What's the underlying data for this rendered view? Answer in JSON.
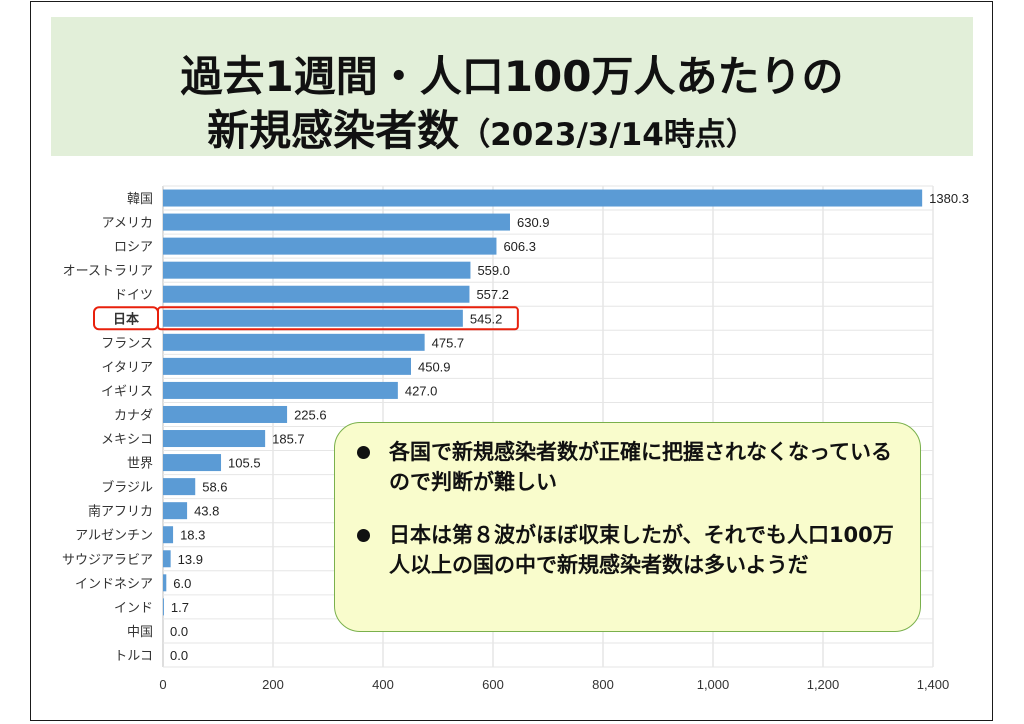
{
  "title": {
    "line1": "過去1週間・人口100万人あたりの",
    "line2_main": "新規感染者数",
    "line2_sub": "（2023/3/14時点）"
  },
  "chart_data": {
    "type": "bar",
    "orientation": "horizontal",
    "categories": [
      "韓国",
      "アメリカ",
      "ロシア",
      "オーストラリア",
      "ドイツ",
      "日本",
      "フランス",
      "イタリア",
      "イギリス",
      "カナダ",
      "メキシコ",
      "世界",
      "ブラジル",
      "南アフリカ",
      "アルゼンチン",
      "サウジアラビア",
      "インドネシア",
      "インド",
      "中国",
      "トルコ"
    ],
    "values": [
      1380.3,
      630.9,
      606.3,
      559.0,
      557.2,
      545.2,
      475.7,
      450.9,
      427.0,
      225.6,
      185.7,
      105.5,
      58.6,
      43.8,
      18.3,
      13.9,
      6.0,
      1.7,
      0.0,
      0.0
    ],
    "value_labels": [
      "1380.3",
      "630.9",
      "606.3",
      "559.0",
      "557.2",
      "545.2",
      "475.7",
      "450.9",
      "427.0",
      "225.6",
      "185.7",
      "105.5",
      "58.6",
      "43.8",
      "18.3",
      "13.9",
      "6.0",
      "1.7",
      "0.0",
      "0.0"
    ],
    "xlim": [
      0,
      1400
    ],
    "xticks": [
      0,
      200,
      400,
      600,
      800,
      1000,
      1200,
      1400
    ],
    "xtick_labels": [
      "0",
      "200",
      "400",
      "600",
      "800",
      "1,000",
      "1,200",
      "1,400"
    ],
    "highlight_category": "日本",
    "grid": true,
    "bar_color": "#5b9bd5",
    "highlight_color": "#e8200c"
  },
  "callout": {
    "bullet1": "各国で新規感染者数が正確に把握されなくなっているので判断が難しい",
    "bullet2": "日本は第８波がほぼ収束したが、それでも人口100万人以上の国の中で新規感染者数は多いようだ"
  }
}
